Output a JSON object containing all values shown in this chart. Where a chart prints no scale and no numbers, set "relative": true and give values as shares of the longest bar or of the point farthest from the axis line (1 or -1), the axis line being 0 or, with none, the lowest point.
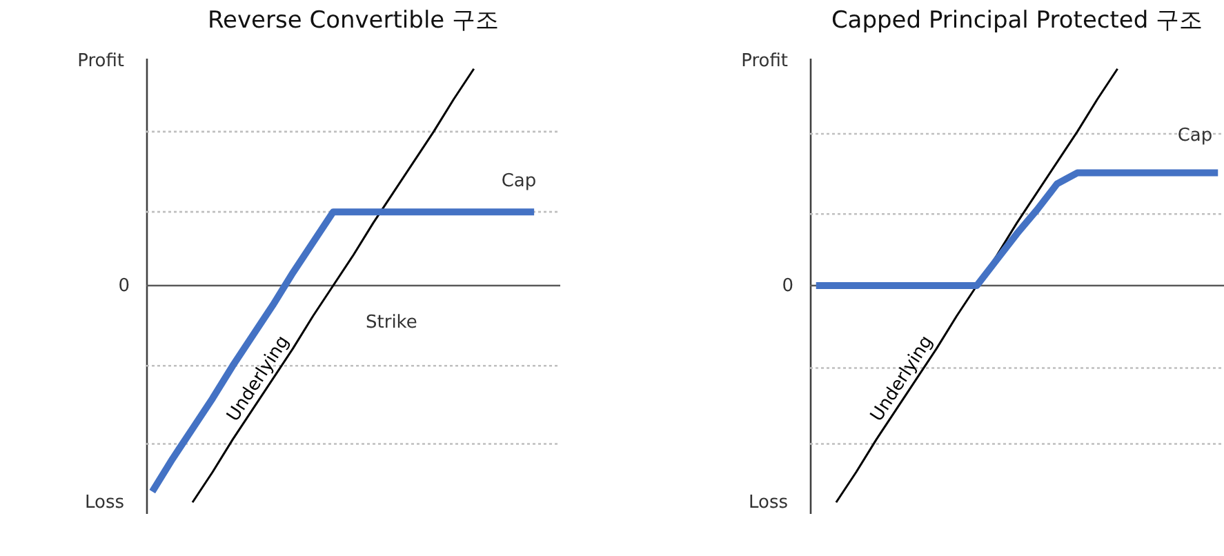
{
  "chart_data": [
    {
      "type": "line",
      "title": "Reverse Convertible 구조",
      "relative": true,
      "categories": [
        null,
        null,
        null,
        null,
        null,
        null,
        null,
        null,
        null,
        null,
        null,
        null,
        null,
        null,
        null,
        null,
        null,
        null,
        null,
        null,
        null
      ],
      "series": [
        {
          "name": "Underlying",
          "color": "#000000",
          "values": [
            null,
            null,
            -1,
            -0.86,
            -0.71,
            -0.57,
            -0.43,
            -0.29,
            -0.14,
            0,
            0.14,
            0.29,
            0.43,
            0.57,
            0.71,
            0.86,
            1,
            null,
            null,
            null,
            null
          ]
        },
        {
          "color": "#4472c4",
          "values": [
            -0.95,
            -0.8,
            -0.66,
            -0.52,
            -0.37,
            -0.23,
            -0.09,
            0.06,
            0.2,
            0.34,
            0.34,
            0.34,
            0.34,
            0.34,
            0.34,
            0.34,
            0.34,
            0.34,
            0.34,
            0.34,
            null
          ]
        }
      ],
      "ref_lines": [
        {
          "axis": "y",
          "value": 0,
          "label": "0",
          "color": "#595959"
        },
        {
          "axis": "y",
          "value": 0.71,
          "color": "#bfbfbf",
          "line_style": "dotted"
        },
        {
          "axis": "y",
          "value": 0.34,
          "color": "#bfbfbf",
          "line_style": "dotted"
        },
        {
          "axis": "y",
          "value": -0.37,
          "color": "#bfbfbf",
          "line_style": "dotted"
        },
        {
          "axis": "y",
          "value": -0.73,
          "color": "#bfbfbf",
          "line_style": "dotted"
        }
      ],
      "annotations": [
        "Profit",
        "Loss",
        "Cap",
        "Strike"
      ]
    },
    {
      "type": "line",
      "title": "Capped Principal Protected 구조",
      "relative": true,
      "categories": [
        null,
        null,
        null,
        null,
        null,
        null,
        null,
        null,
        null,
        null,
        null,
        null,
        null,
        null,
        null,
        null,
        null,
        null,
        null,
        null,
        null
      ],
      "series": [
        {
          "name": "Underlying",
          "color": "#000000",
          "values": [
            null,
            -1,
            -0.86,
            -0.71,
            -0.57,
            -0.43,
            -0.29,
            -0.14,
            0,
            0.14,
            0.29,
            0.43,
            0.57,
            0.71,
            0.86,
            1,
            null,
            null,
            null,
            null,
            null
          ]
        },
        {
          "color": "#4472c4",
          "values": [
            0,
            0,
            0,
            0,
            0,
            0,
            0,
            0,
            0,
            0.12,
            0.24,
            0.35,
            0.47,
            0.52,
            0.52,
            0.52,
            0.52,
            0.52,
            0.52,
            0.52,
            0.52
          ]
        }
      ],
      "ref_lines": [
        {
          "axis": "y",
          "value": 0,
          "label": "0",
          "color": "#595959"
        },
        {
          "axis": "y",
          "value": 0.7,
          "color": "#bfbfbf",
          "line_style": "dotted"
        },
        {
          "axis": "y",
          "value": 0.33,
          "color": "#bfbfbf",
          "line_style": "dotted"
        },
        {
          "axis": "y",
          "value": -0.38,
          "color": "#bfbfbf",
          "line_style": "dotted"
        },
        {
          "axis": "y",
          "value": -0.73,
          "color": "#bfbfbf",
          "line_style": "dotted"
        }
      ],
      "annotations": [
        "Profit",
        "Loss",
        "Cap"
      ]
    }
  ]
}
